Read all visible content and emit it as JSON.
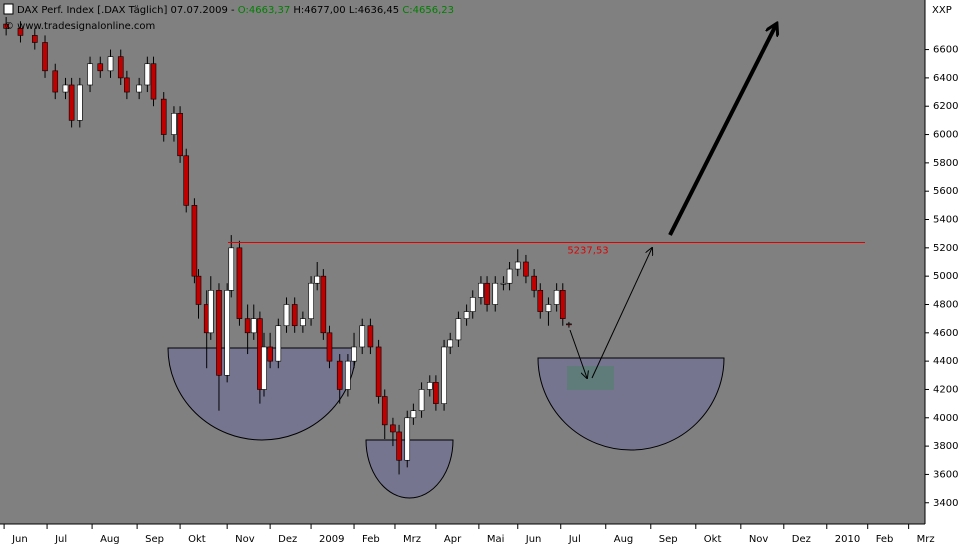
{
  "chart_data": {
    "type": "candlestick",
    "title": "DAX Perf. Index [.DAX  Täglich] 07.07.2009 -",
    "quote_open": "O:4663,37",
    "quote_high_low": "H:4677,00 L:4636,45",
    "quote_close": "C:4656,23",
    "source": "© www.tradesignalonline.com",
    "axis_label": "XXP",
    "up_color": "#ffffff",
    "down_color": "#c00000",
    "background": "#808080",
    "resistance": {
      "value": 5237.53,
      "label": "5237,53",
      "color": "#e00000"
    },
    "x": [
      1,
      8,
      15,
      20,
      25,
      30,
      33,
      37,
      42,
      47,
      52,
      57,
      60,
      66,
      70,
      73,
      78,
      83,
      86,
      89,
      93,
      95,
      99,
      101,
      105,
      109,
      111,
      115,
      119,
      122,
      125,
      127,
      130,
      134,
      138,
      142,
      146,
      150,
      153,
      156,
      159,
      164,
      168,
      171,
      175,
      179,
      183,
      186,
      190,
      193,
      197,
      200,
      204,
      208,
      211,
      215,
      218,
      222,
      226,
      229,
      233,
      236,
      240,
      244,
      247,
      251,
      255,
      259,
      262,
      266,
      270,
      273,
      276
    ],
    "open": [
      6780,
      6750,
      6700,
      6650,
      6450,
      6300,
      6350,
      6100,
      6350,
      6500,
      6450,
      6550,
      6400,
      6300,
      6350,
      6500,
      6250,
      6000,
      6150,
      5850,
      5500,
      5000,
      4800,
      4600,
      4900,
      4300,
      4900,
      5200,
      4700,
      4600,
      4700,
      4200,
      4500,
      4400,
      4650,
      4800,
      4650,
      4700,
      4950,
      5000,
      4600,
      4400,
      4200,
      4400,
      4500,
      4650,
      4500,
      4150,
      3950,
      3900,
      3700,
      4000,
      4050,
      4200,
      4250,
      4100,
      4500,
      4550,
      4700,
      4750,
      4850,
      4950,
      4800,
      4950,
      4950,
      5050,
      5100,
      5000,
      4900,
      4750,
      4800,
      4900,
      4663.37
    ],
    "high": [
      6830,
      6800,
      6750,
      6700,
      6500,
      6400,
      6400,
      6400,
      6550,
      6550,
      6600,
      6600,
      6450,
      6400,
      6550,
      6550,
      6300,
      6200,
      6200,
      5900,
      5550,
      5050,
      4900,
      5000,
      4950,
      4950,
      5290,
      5250,
      4800,
      4800,
      4750,
      4600,
      4600,
      4700,
      4850,
      4850,
      4750,
      5000,
      5100,
      5050,
      4650,
      4450,
      4450,
      4600,
      4700,
      4700,
      4550,
      4200,
      4000,
      3950,
      4050,
      4100,
      4250,
      4300,
      4300,
      4550,
      4600,
      4750,
      4800,
      4900,
      5000,
      5000,
      5000,
      5000,
      5100,
      5190,
      5150,
      5050,
      4950,
      4850,
      4950,
      4950,
      4677
    ],
    "low": [
      6700,
      6650,
      6600,
      6400,
      6250,
      6250,
      6050,
      6050,
      6300,
      6400,
      6400,
      6350,
      6250,
      6250,
      6300,
      6200,
      5950,
      5950,
      5800,
      5450,
      4950,
      4700,
      4350,
      4550,
      4050,
      4250,
      4850,
      4650,
      4450,
      4550,
      4100,
      4150,
      4350,
      4350,
      4600,
      4600,
      4600,
      4650,
      4900,
      4550,
      4350,
      4100,
      4150,
      4350,
      4450,
      4450,
      4100,
      3850,
      3800,
      3600,
      3650,
      3950,
      4000,
      4150,
      4050,
      4050,
      4450,
      4500,
      4650,
      4700,
      4800,
      4750,
      4750,
      4900,
      4900,
      5000,
      4950,
      4850,
      4700,
      4650,
      4750,
      4650,
      4636.45
    ],
    "close": [
      6750,
      6700,
      6650,
      6450,
      6300,
      6350,
      6100,
      6350,
      6500,
      6450,
      6550,
      6400,
      6300,
      6350,
      6500,
      6250,
      6000,
      6150,
      5850,
      5500,
      5000,
      4800,
      4600,
      4900,
      4300,
      4900,
      5200,
      4700,
      4600,
      4700,
      4200,
      4500,
      4400,
      4650,
      4800,
      4650,
      4700,
      4950,
      5000,
      4600,
      4400,
      4200,
      4400,
      4500,
      4650,
      4500,
      4150,
      3950,
      3900,
      3700,
      4000,
      4050,
      4200,
      4250,
      4100,
      4500,
      4550,
      4700,
      4750,
      4850,
      4950,
      4800,
      4950,
      4950,
      5050,
      5100,
      5000,
      4900,
      4750,
      4800,
      4900,
      4700,
      4656.23
    ],
    "xlim": [
      -2,
      450
    ],
    "xticks": [
      {
        "value": 0,
        "label": "Jun"
      },
      {
        "value": 21,
        "label": "Jul"
      },
      {
        "value": 43,
        "label": "Aug"
      },
      {
        "value": 65,
        "label": "Sep"
      },
      {
        "value": 86,
        "label": "Okt"
      },
      {
        "value": 109,
        "label": "Nov"
      },
      {
        "value": 130,
        "label": "Dez"
      },
      {
        "value": 150,
        "label": "2009"
      },
      {
        "value": 171,
        "label": "Feb"
      },
      {
        "value": 191,
        "label": "Mrz"
      },
      {
        "value": 211,
        "label": "Apr"
      },
      {
        "value": 232,
        "label": "Mai"
      },
      {
        "value": 251,
        "label": "Jun"
      },
      {
        "value": 272,
        "label": "Jul"
      },
      {
        "value": 294,
        "label": "Aug"
      },
      {
        "value": 316,
        "label": "Sep"
      },
      {
        "value": 338,
        "label": "Okt"
      },
      {
        "value": 360,
        "label": "Nov"
      },
      {
        "value": 381,
        "label": "Dez"
      },
      {
        "value": 402,
        "label": "2010"
      },
      {
        "value": 422,
        "label": "Feb"
      },
      {
        "value": 442,
        "label": "Mrz"
      }
    ],
    "ylim": [
      3250,
      6950
    ],
    "yticks": [
      3400,
      3600,
      3800,
      4000,
      4200,
      4400,
      4600,
      4800,
      5000,
      5200,
      5400,
      5600,
      5800,
      6000,
      6200,
      6400,
      6600
    ]
  }
}
